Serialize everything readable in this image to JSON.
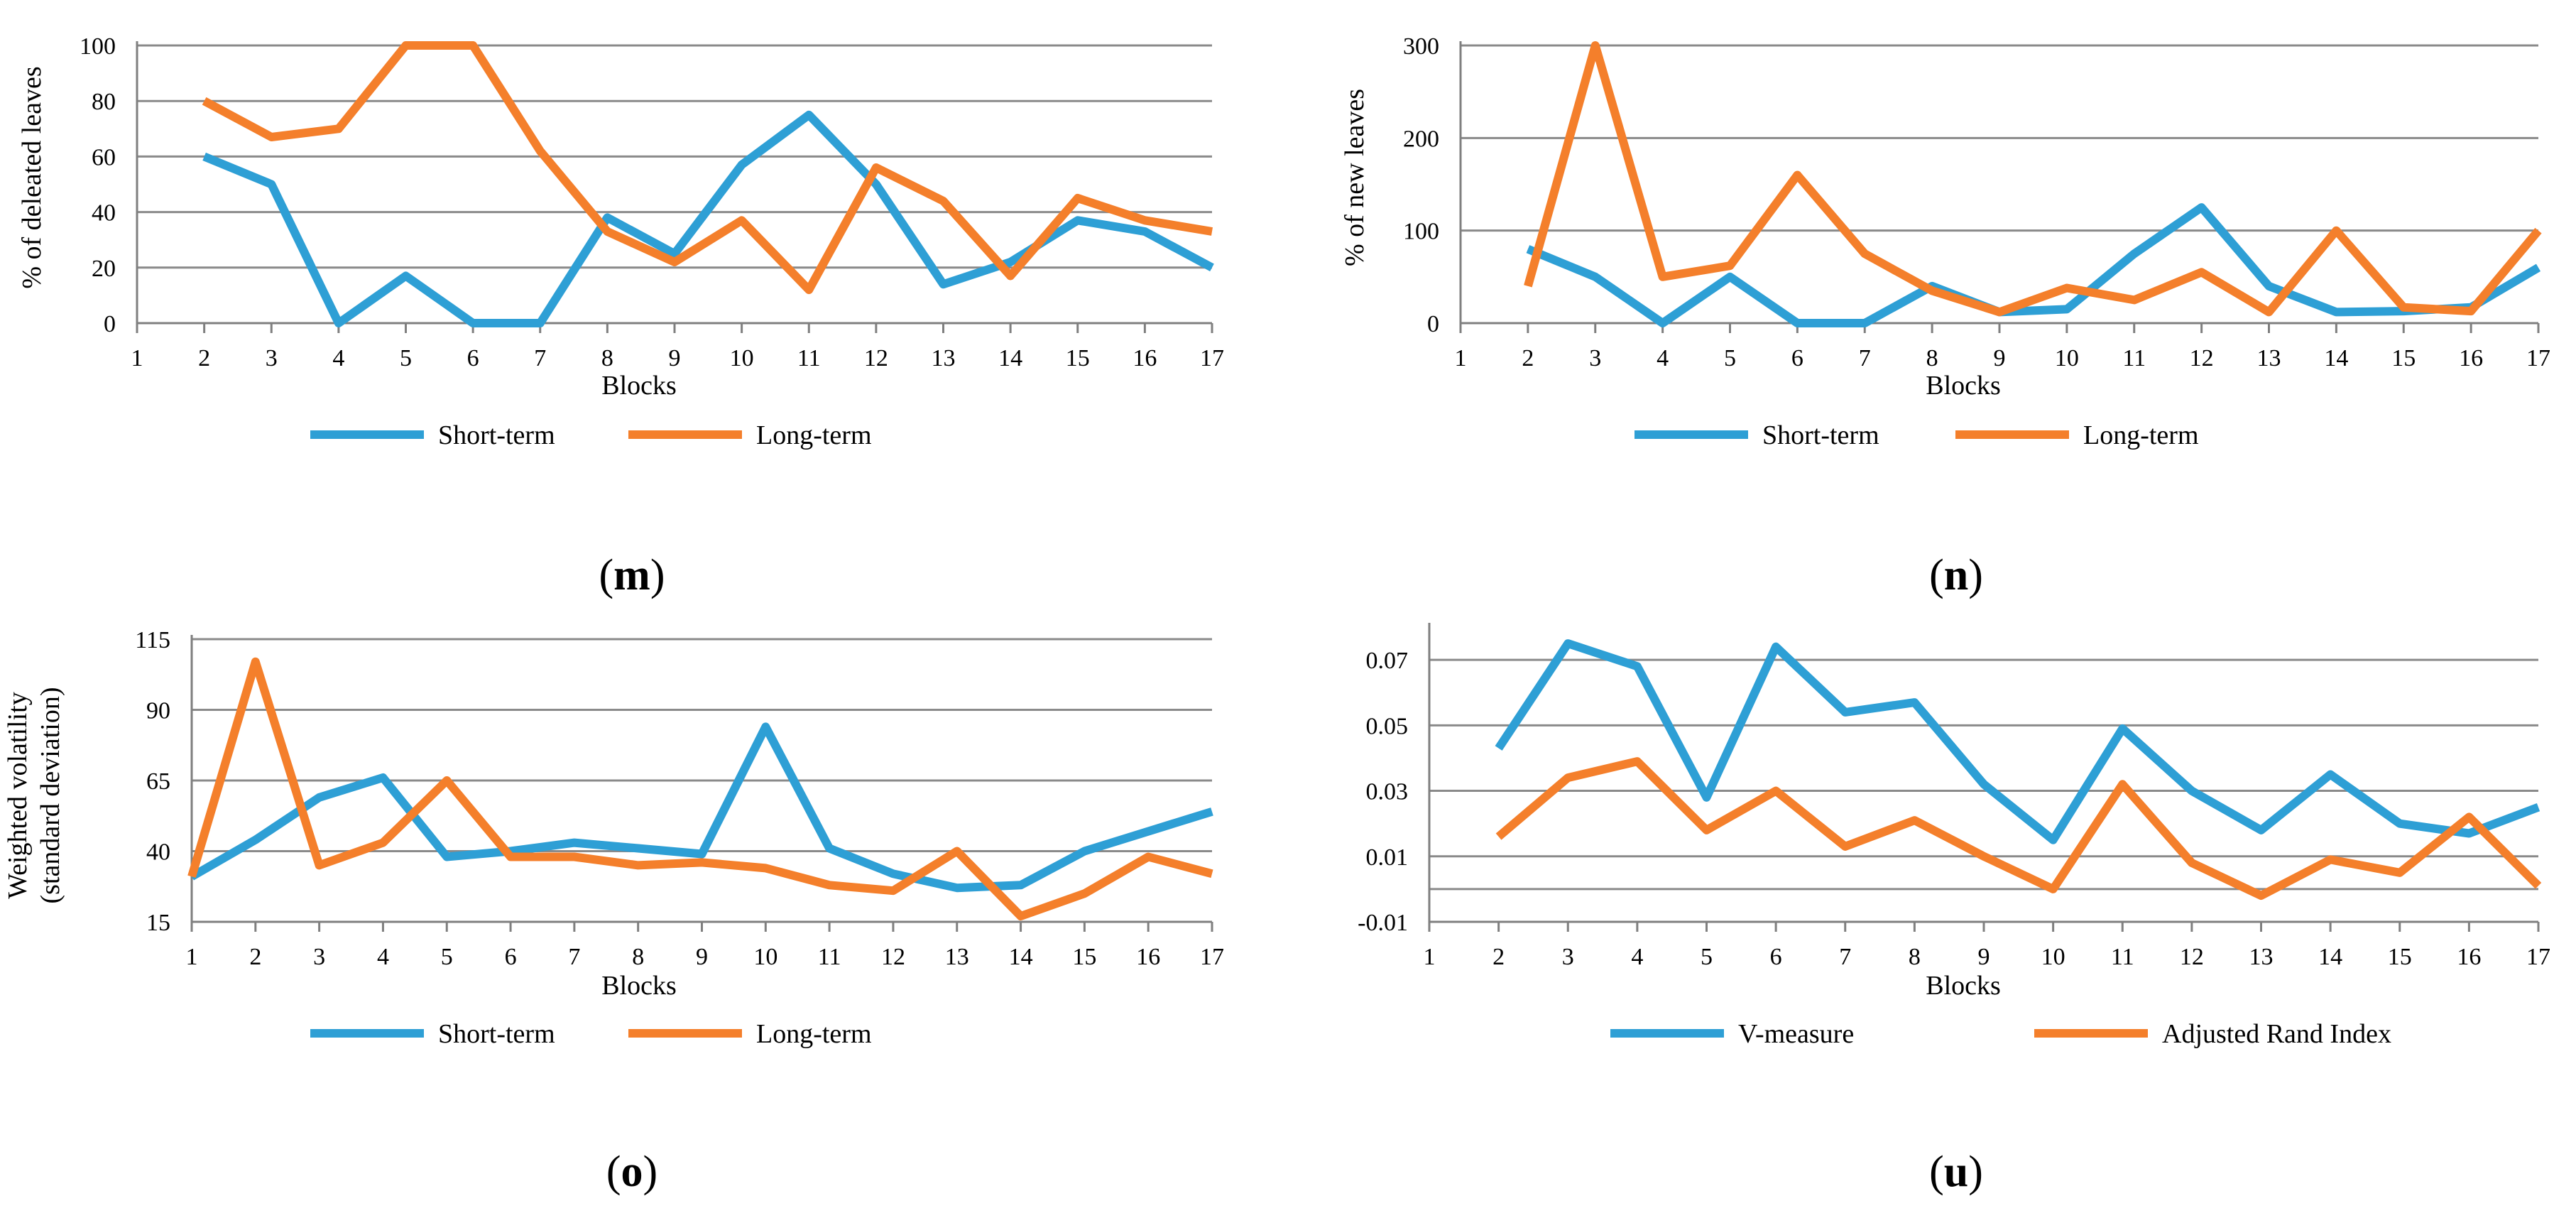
{
  "colors": {
    "series1": "#2E9FD5",
    "series2": "#F47F2B",
    "grid": "#8a8a8a",
    "axis": "#7f7f7f"
  },
  "chart_data": [
    {
      "id": "m",
      "type": "line",
      "caption": {
        "open": "(",
        "letter": "m",
        "close": ")"
      },
      "xlabel": "Blocks",
      "ylabel": [
        "% of deleated leaves"
      ],
      "ylim": [
        0,
        100
      ],
      "yticks": [
        "0",
        "20",
        "40",
        "60",
        "80",
        "100"
      ],
      "yticks_values": [
        0,
        20,
        40,
        60,
        80,
        100
      ],
      "categories": [
        "1",
        "2",
        "3",
        "4",
        "5",
        "6",
        "7",
        "8",
        "9",
        "10",
        "11",
        "12",
        "13",
        "14",
        "15",
        "16",
        "17"
      ],
      "series": [
        {
          "name": "Short-term",
          "values": [
            null,
            60,
            50,
            0,
            17,
            0,
            0,
            38,
            25,
            57,
            75,
            50,
            14,
            22,
            37,
            33,
            20
          ]
        },
        {
          "name": "Long-term",
          "values": [
            null,
            80,
            67,
            70,
            100,
            100,
            62,
            33,
            22,
            37,
            12,
            56,
            44,
            17,
            45,
            37,
            33
          ]
        }
      ]
    },
    {
      "id": "n",
      "type": "line",
      "caption": {
        "open": "(",
        "letter": "n",
        "close": ")"
      },
      "xlabel": "Blocks",
      "ylabel": [
        "% of new leaves"
      ],
      "ylim": [
        0,
        300
      ],
      "yticks": [
        "0",
        "100",
        "200",
        "300"
      ],
      "yticks_values": [
        0,
        100,
        200,
        300
      ],
      "categories": [
        "1",
        "2",
        "3",
        "4",
        "5",
        "6",
        "7",
        "8",
        "9",
        "10",
        "11",
        "12",
        "13",
        "14",
        "15",
        "16",
        "17"
      ],
      "series": [
        {
          "name": "Short-term",
          "values": [
            null,
            80,
            50,
            0,
            50,
            0,
            0,
            40,
            12,
            15,
            75,
            125,
            40,
            12,
            13,
            17,
            60
          ]
        },
        {
          "name": "Long-term",
          "values": [
            null,
            40,
            300,
            50,
            62,
            160,
            75,
            35,
            12,
            38,
            25,
            55,
            12,
            100,
            17,
            13,
            100
          ]
        }
      ]
    },
    {
      "id": "o",
      "type": "line",
      "caption": {
        "open": "(",
        "letter": "o",
        "close": ")"
      },
      "xlabel": "Blocks",
      "ylabel": [
        "Weighted volatility",
        "(standard deviation)"
      ],
      "ylim": [
        15,
        115
      ],
      "yticks": [
        "15",
        "40",
        "65",
        "90",
        "115"
      ],
      "yticks_values": [
        15,
        40,
        65,
        90,
        115
      ],
      "categories": [
        "1",
        "2",
        "3",
        "4",
        "5",
        "6",
        "7",
        "8",
        "9",
        "10",
        "11",
        "12",
        "13",
        "14",
        "15",
        "16",
        "17"
      ],
      "series": [
        {
          "name": "Short-term",
          "values": [
            31,
            44,
            59,
            66,
            38,
            40,
            43,
            41,
            39,
            84,
            41,
            32,
            27,
            28,
            40,
            47,
            54
          ]
        },
        {
          "name": "Long-term",
          "values": [
            31,
            107,
            35,
            43,
            65,
            38,
            38,
            35,
            36,
            34,
            28,
            26,
            40,
            17,
            25,
            38,
            32
          ]
        }
      ]
    },
    {
      "id": "u",
      "type": "line",
      "caption": {
        "open": "(",
        "letter": "u",
        "close": ")"
      },
      "xlabel": "Blocks",
      "ylabel": [],
      "ylim": [
        -0.01,
        0.08
      ],
      "yticks": [
        "-0.01",
        "0.01",
        "0.03",
        "0.05",
        "0.07"
      ],
      "yticks_values": [
        -0.01,
        0.01,
        0.03,
        0.05,
        0.07
      ],
      "zero_line": true,
      "categories": [
        "1",
        "2",
        "3",
        "4",
        "5",
        "6",
        "7",
        "8",
        "9",
        "10",
        "11",
        "12",
        "13",
        "14",
        "15",
        "16",
        "17"
      ],
      "series": [
        {
          "name": "V-measure",
          "values": [
            null,
            0.043,
            0.075,
            0.068,
            0.028,
            0.074,
            0.054,
            0.057,
            0.032,
            0.015,
            0.049,
            0.03,
            0.018,
            0.035,
            0.02,
            0.017,
            0.025
          ]
        },
        {
          "name": "Adjusted Rand Index",
          "values": [
            null,
            0.016,
            0.034,
            0.039,
            0.018,
            0.03,
            0.013,
            0.021,
            0.01,
            0.0,
            0.032,
            0.008,
            -0.002,
            0.009,
            0.005,
            0.022,
            0.001
          ]
        }
      ]
    }
  ]
}
